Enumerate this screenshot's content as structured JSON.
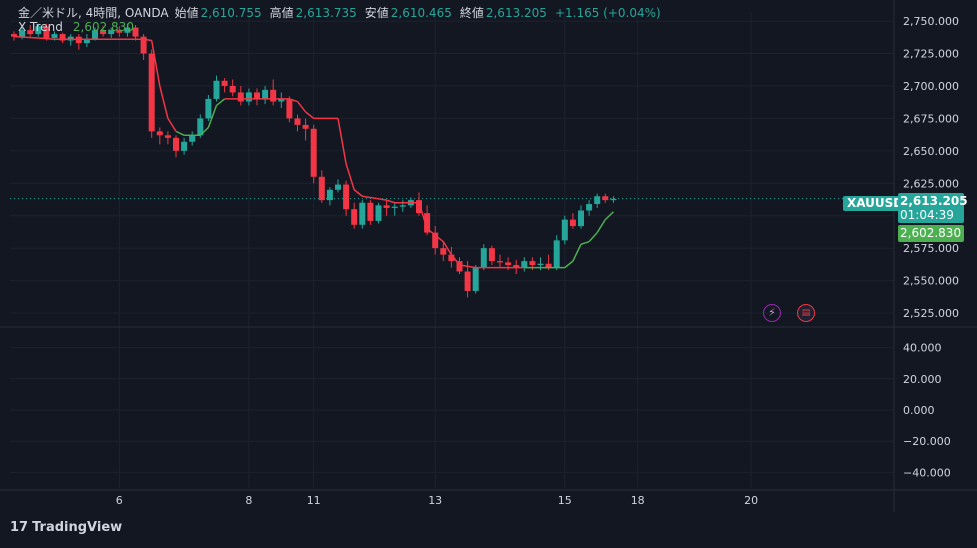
{
  "header": {
    "symbol_line": "金／米ドル, 4時間, OANDA",
    "open_label": "始値",
    "open": "2,610.755",
    "high_label": "高値",
    "high": "2,613.735",
    "low_label": "安値",
    "low": "2,610.465",
    "close_label": "終値",
    "close": "2,613.205",
    "change": "+1.165 (+0.04%)"
  },
  "indicator": {
    "name": "X Trend",
    "value": "2,602.830"
  },
  "price_tag": {
    "symbol": "XAUUSD",
    "price": "2,613.205",
    "countdown": "01:04:39"
  },
  "xtrend_tag": "2,602.830",
  "footer": {
    "brand": "TradingView"
  },
  "colors": {
    "up": "#26a69a",
    "down": "#f23645",
    "trend_up": "#4caf50",
    "trend_down": "#f23645",
    "bg": "#131722"
  },
  "chart_data": {
    "type": "candlestick",
    "price_axis": {
      "ticks": [
        2525,
        2550,
        2575,
        2600,
        2625,
        2650,
        2675,
        2700,
        2725,
        2750
      ],
      "tick_labels": [
        "2,525.000",
        "2,550.000",
        "2,575.000",
        "2,600.000",
        "2,625.000",
        "2,650.000",
        "2,675.000",
        "2,700.000",
        "2,725.000",
        "2,750.000"
      ],
      "range": [
        2515,
        2757
      ]
    },
    "osc_axis": {
      "ticks": [
        40,
        20,
        0,
        -20,
        -40
      ],
      "tick_labels": [
        "40.000",
        "20.000",
        "0.000",
        "−20.000",
        "−40.000"
      ],
      "range": [
        -50,
        50
      ]
    },
    "x_axis": {
      "range": [
        0,
        84
      ],
      "ticks": [
        {
          "x": 13,
          "label": "6"
        },
        {
          "x": 29,
          "label": "8"
        },
        {
          "x": 37,
          "label": "11"
        },
        {
          "x": 52,
          "label": "13"
        },
        {
          "x": 68,
          "label": "15"
        },
        {
          "x": 77,
          "label": "18"
        },
        {
          "x": 91,
          "label": "20"
        }
      ]
    },
    "last_price": 2613.205,
    "candles": [
      [
        2740,
        2742,
        2735,
        2738
      ],
      [
        2738,
        2745,
        2736,
        2743
      ],
      [
        2743,
        2747,
        2738,
        2740
      ],
      [
        2740,
        2748,
        2738,
        2746
      ],
      [
        2746,
        2748,
        2735,
        2737
      ],
      [
        2737,
        2742,
        2735,
        2740
      ],
      [
        2740,
        2741,
        2733,
        2735
      ],
      [
        2735,
        2740,
        2731,
        2738
      ],
      [
        2738,
        2740,
        2728,
        2733
      ],
      [
        2733,
        2740,
        2730,
        2736
      ],
      [
        2736,
        2745,
        2735,
        2743
      ],
      [
        2743,
        2746,
        2738,
        2740
      ],
      [
        2740,
        2745,
        2737,
        2743
      ],
      [
        2743,
        2746,
        2738,
        2741
      ],
      [
        2741,
        2748,
        2738,
        2745
      ],
      [
        2745,
        2747,
        2735,
        2738
      ],
      [
        2738,
        2740,
        2720,
        2725
      ],
      [
        2725,
        2728,
        2660,
        2665
      ],
      [
        2665,
        2668,
        2655,
        2662
      ],
      [
        2662,
        2665,
        2655,
        2660
      ],
      [
        2660,
        2662,
        2645,
        2650
      ],
      [
        2650,
        2660,
        2647,
        2657
      ],
      [
        2657,
        2665,
        2654,
        2662
      ],
      [
        2662,
        2678,
        2660,
        2675
      ],
      [
        2675,
        2693,
        2673,
        2690
      ],
      [
        2690,
        2708,
        2688,
        2704
      ],
      [
        2704,
        2706,
        2695,
        2700
      ],
      [
        2700,
        2705,
        2692,
        2695
      ],
      [
        2695,
        2700,
        2685,
        2688
      ],
      [
        2688,
        2698,
        2685,
        2695
      ],
      [
        2695,
        2698,
        2685,
        2690
      ],
      [
        2690,
        2700,
        2686,
        2697
      ],
      [
        2697,
        2705,
        2685,
        2688
      ],
      [
        2688,
        2695,
        2683,
        2690
      ],
      [
        2690,
        2692,
        2672,
        2675
      ],
      [
        2675,
        2678,
        2665,
        2670
      ],
      [
        2670,
        2675,
        2658,
        2667
      ],
      [
        2667,
        2670,
        2625,
        2630
      ],
      [
        2630,
        2635,
        2610,
        2612
      ],
      [
        2612,
        2622,
        2608,
        2620
      ],
      [
        2620,
        2628,
        2618,
        2624
      ],
      [
        2624,
        2627,
        2600,
        2605
      ],
      [
        2605,
        2610,
        2590,
        2593
      ],
      [
        2593,
        2612,
        2590,
        2610
      ],
      [
        2610,
        2612,
        2593,
        2596
      ],
      [
        2596,
        2610,
        2594,
        2608
      ],
      [
        2608,
        2612,
        2600,
        2606
      ],
      [
        2606,
        2610,
        2600,
        2607
      ],
      [
        2607,
        2612,
        2603,
        2608
      ],
      [
        2608,
        2614,
        2606,
        2612
      ],
      [
        2612,
        2618,
        2600,
        2602
      ],
      [
        2602,
        2608,
        2585,
        2587
      ],
      [
        2587,
        2592,
        2570,
        2575
      ],
      [
        2575,
        2580,
        2565,
        2570
      ],
      [
        2570,
        2576,
        2560,
        2565
      ],
      [
        2565,
        2568,
        2555,
        2557
      ],
      [
        2557,
        2565,
        2537,
        2542
      ],
      [
        2542,
        2562,
        2540,
        2560
      ],
      [
        2560,
        2578,
        2558,
        2575
      ],
      [
        2575,
        2577,
        2562,
        2565
      ],
      [
        2565,
        2570,
        2560,
        2564
      ],
      [
        2564,
        2568,
        2558,
        2562
      ],
      [
        2562,
        2566,
        2555,
        2560
      ],
      [
        2560,
        2568,
        2557,
        2565
      ],
      [
        2565,
        2568,
        2558,
        2562
      ],
      [
        2562,
        2568,
        2558,
        2563
      ],
      [
        2563,
        2570,
        2558,
        2560
      ],
      [
        2560,
        2585,
        2558,
        2581
      ],
      [
        2581,
        2600,
        2578,
        2597
      ],
      [
        2597,
        2602,
        2590,
        2592
      ],
      [
        2592,
        2608,
        2590,
        2604
      ],
      [
        2604,
        2612,
        2600,
        2609
      ],
      [
        2609,
        2617,
        2606,
        2615
      ],
      [
        2615,
        2617,
        2610,
        2612
      ],
      [
        2612,
        2615,
        2610,
        2613
      ]
    ],
    "xtrend": [
      [
        0,
        2738,
        "down"
      ],
      [
        3,
        2737,
        "down"
      ],
      [
        5,
        2736,
        "down"
      ],
      [
        10,
        2736,
        "down"
      ],
      [
        14,
        2736,
        "down"
      ],
      [
        16,
        2736,
        "down"
      ],
      [
        17,
        2735,
        "down"
      ],
      [
        18,
        2700,
        "down"
      ],
      [
        19,
        2675,
        "down"
      ],
      [
        20,
        2665,
        "down"
      ],
      [
        21,
        2662,
        "up"
      ],
      [
        22,
        2662,
        "up"
      ],
      [
        23,
        2662,
        "up"
      ],
      [
        24,
        2668,
        "up"
      ],
      [
        25,
        2685,
        "up"
      ],
      [
        26,
        2690,
        "up"
      ],
      [
        31,
        2690,
        "down"
      ],
      [
        34,
        2690,
        "down"
      ],
      [
        35,
        2688,
        "down"
      ],
      [
        36,
        2680,
        "down"
      ],
      [
        37,
        2675,
        "down"
      ],
      [
        40,
        2675,
        "down"
      ],
      [
        41,
        2640,
        "down"
      ],
      [
        42,
        2620,
        "down"
      ],
      [
        43,
        2615,
        "down"
      ],
      [
        46,
        2612,
        "down"
      ],
      [
        47,
        2610,
        "down"
      ],
      [
        48,
        2610,
        "down"
      ],
      [
        49,
        2610,
        "down"
      ],
      [
        50,
        2610,
        "down"
      ],
      [
        51,
        2590,
        "down"
      ],
      [
        52,
        2585,
        "down"
      ],
      [
        53,
        2580,
        "down"
      ],
      [
        54,
        2570,
        "down"
      ],
      [
        55,
        2562,
        "down"
      ],
      [
        57,
        2560,
        "down"
      ],
      [
        63,
        2560,
        "down"
      ],
      [
        68,
        2560,
        "up"
      ],
      [
        69,
        2565,
        "up"
      ],
      [
        70,
        2578,
        "up"
      ],
      [
        71,
        2580,
        "up"
      ],
      [
        72,
        2587,
        "up"
      ],
      [
        73,
        2597,
        "up"
      ],
      [
        74,
        2603,
        "up"
      ]
    ]
  }
}
